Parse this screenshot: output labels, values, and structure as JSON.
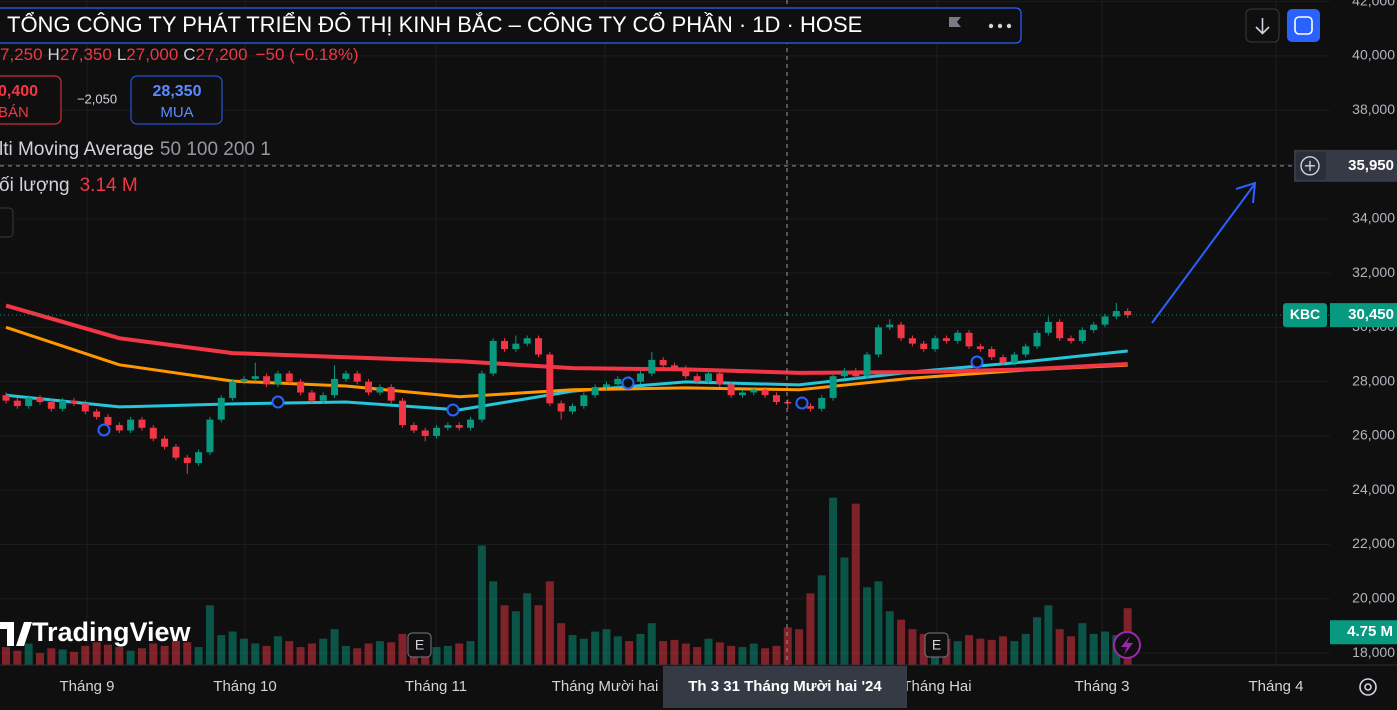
{
  "header": {
    "title": "TỔNG CÔNG TY PHÁT TRIỂN ĐÔ THỊ KINH BẮC – CÔNG TY CỔ PHẦN · 1D · HOSE",
    "ohlc": {
      "open": "7,250",
      "high_key": "H",
      "high": "27,350",
      "low_key": "L",
      "low": "27,000",
      "close_key": "C",
      "close": "27,200",
      "change": "−50 (−0.18%)"
    }
  },
  "order": {
    "sell_price": "0,400",
    "sell_label": "BÁN",
    "spread": "−2,050",
    "buy_price": "28,350",
    "buy_label": "MUA"
  },
  "indicators": {
    "ma_name": "lti Moving Average",
    "ma_params": "50 100 200 1",
    "volume_name": "ối lượng",
    "volume_value": "3.14 M"
  },
  "logo": "TradingView",
  "chart_data": {
    "type": "candlestick",
    "symbol": "KBC",
    "up_color": "#089981",
    "down_color": "#f23645",
    "ylim": [
      17560,
      42060
    ],
    "yticks": [
      {
        "value": 18000,
        "label": "18,000"
      },
      {
        "value": 20000,
        "label": "20,000"
      },
      {
        "value": 22000,
        "label": "22,000"
      },
      {
        "value": 24000,
        "label": "24,000"
      },
      {
        "value": 26000,
        "label": "26,000"
      },
      {
        "value": 28000,
        "label": "28,000"
      },
      {
        "value": 30000,
        "label": "30,000"
      },
      {
        "value": 32000,
        "label": "32,000"
      },
      {
        "value": 34000,
        "label": "34,000"
      },
      {
        "value": 36000,
        "label": "36,000"
      },
      {
        "value": 38000,
        "label": "38,000"
      },
      {
        "value": 40000,
        "label": "40,000"
      },
      {
        "value": 42000,
        "label": "42,000"
      }
    ],
    "grid": true,
    "x_labels": [
      "Tháng 9",
      "Tháng 10",
      "Tháng 11",
      "Tháng Mười hai",
      "Tháng Hai",
      "Tháng 3",
      "Tháng 4"
    ],
    "open": [
      27500,
      27300,
      27100,
      27400,
      27250,
      27000,
      27300,
      27200,
      26900,
      26700,
      26400,
      26200,
      26600,
      26300,
      25900,
      25600,
      25200,
      25000,
      25400,
      26600,
      27400,
      28000,
      28100,
      28200,
      27900,
      28300,
      28000,
      27600,
      27300,
      27500,
      28100,
      28300,
      28000,
      27600,
      27800,
      27300,
      26400,
      26200,
      26000,
      26300,
      26400,
      26300,
      26600,
      28300,
      29500,
      29200,
      29400,
      29600,
      29000,
      27200,
      26900,
      27100,
      27500,
      27800,
      27900,
      28100,
      28000,
      28300,
      28800,
      28600,
      28500,
      28200,
      28000,
      28300,
      27900,
      27500,
      27600,
      27700,
      27500,
      27250,
      27200,
      27100,
      27000,
      27400,
      28200,
      28400,
      28200,
      29000,
      30000,
      30100,
      29600,
      29400,
      29200,
      29600,
      29500,
      29800,
      29300,
      29200,
      28900,
      28700,
      29000,
      29300,
      29800,
      30200,
      29600,
      29500,
      29900,
      30100,
      30400,
      30600
    ],
    "high": [
      27600,
      27400,
      27500,
      27500,
      27350,
      27400,
      27400,
      27300,
      27000,
      26800,
      26500,
      26700,
      26700,
      26400,
      26000,
      25700,
      25300,
      25500,
      26700,
      27500,
      28100,
      28200,
      28700,
      28300,
      28400,
      28400,
      28100,
      27700,
      27600,
      28600,
      28400,
      28400,
      28100,
      27900,
      27900,
      27400,
      26500,
      26300,
      26400,
      26500,
      26500,
      26700,
      28400,
      29600,
      29600,
      29700,
      29700,
      29700,
      29100,
      27300,
      27200,
      27600,
      27900,
      28000,
      28200,
      28200,
      28400,
      29100,
      28900,
      28700,
      28600,
      28300,
      28400,
      28400,
      28000,
      27700,
      27800,
      27800,
      27600,
      27350,
      27300,
      27200,
      27500,
      28300,
      28500,
      28500,
      29100,
      30100,
      30300,
      30200,
      29700,
      29500,
      29700,
      29700,
      29900,
      29900,
      29400,
      29300,
      29000,
      29100,
      29400,
      29900,
      30400,
      30300,
      29700,
      30000,
      30200,
      30500,
      30900,
      30700
    ],
    "low": [
      27200,
      27000,
      27000,
      27150,
      26900,
      26900,
      27100,
      26800,
      26600,
      26300,
      26100,
      26100,
      26200,
      25800,
      25500,
      25100,
      24600,
      24900,
      25300,
      26500,
      27300,
      27900,
      28000,
      27800,
      27800,
      27900,
      27500,
      27200,
      27200,
      27400,
      28000,
      27900,
      27500,
      27500,
      27200,
      26300,
      26100,
      25800,
      25900,
      26200,
      26200,
      26200,
      26500,
      28200,
      29100,
      29100,
      29300,
      28900,
      27100,
      26600,
      26800,
      27000,
      27400,
      27700,
      27800,
      27900,
      27900,
      28200,
      28500,
      28400,
      28100,
      27900,
      27900,
      27800,
      27400,
      27400,
      27500,
      27400,
      27150,
      27000,
      27000,
      26900,
      26900,
      27300,
      28100,
      28100,
      28100,
      28900,
      29900,
      29500,
      29300,
      29100,
      29100,
      29400,
      29400,
      29200,
      29100,
      28800,
      28600,
      28600,
      28900,
      29200,
      29700,
      29500,
      29400,
      29400,
      29800,
      30000,
      30300,
      30350
    ],
    "close": [
      27300,
      27100,
      27400,
      27250,
      27000,
      27300,
      27200,
      26900,
      26700,
      26400,
      26200,
      26600,
      26300,
      25900,
      25600,
      25200,
      25000,
      25400,
      26600,
      27400,
      28000,
      28100,
      28200,
      27900,
      28300,
      28000,
      27600,
      27300,
      27500,
      28100,
      28300,
      28000,
      27600,
      27800,
      27300,
      26400,
      26200,
      26000,
      26300,
      26400,
      26300,
      26600,
      28300,
      29500,
      29200,
      29400,
      29600,
      29000,
      27200,
      26900,
      27100,
      27500,
      27800,
      27900,
      28100,
      28000,
      28300,
      28800,
      28600,
      28500,
      28200,
      28000,
      28300,
      27900,
      27500,
      27600,
      27700,
      27500,
      27250,
      27200,
      27100,
      27000,
      27400,
      28200,
      28400,
      28200,
      29000,
      30000,
      30100,
      29600,
      29400,
      29200,
      29600,
      29500,
      29800,
      29300,
      29200,
      28900,
      28700,
      29000,
      29300,
      29800,
      30200,
      29600,
      29500,
      29900,
      30100,
      30400,
      30600,
      30450
    ],
    "volume": [
      1.5,
      1.2,
      1.8,
      1.0,
      1.4,
      1.3,
      1.1,
      1.6,
      1.9,
      1.7,
      1.5,
      1.2,
      1.4,
      1.8,
      1.6,
      2.0,
      1.9,
      1.5,
      5.0,
      2.5,
      2.8,
      2.2,
      1.8,
      1.6,
      2.4,
      2.0,
      1.5,
      1.8,
      2.2,
      3.0,
      1.6,
      1.4,
      1.8,
      2.0,
      1.9,
      2.6,
      2.4,
      1.8,
      1.5,
      1.6,
      1.8,
      2.0,
      10.0,
      7.0,
      5.0,
      4.5,
      6.0,
      5.0,
      7.0,
      3.5,
      2.5,
      2.2,
      2.8,
      3.0,
      2.4,
      2.0,
      2.6,
      3.5,
      2.0,
      2.1,
      1.8,
      1.5,
      2.2,
      1.9,
      1.6,
      1.5,
      1.8,
      1.4,
      1.6,
      3.14,
      3.0,
      6.0,
      7.5,
      14.0,
      9.0,
      13.5,
      6.5,
      7.0,
      4.5,
      3.8,
      3.0,
      2.6,
      2.4,
      2.2,
      2.0,
      2.5,
      2.2,
      2.1,
      2.4,
      2.0,
      2.6,
      4.0,
      5.0,
      3.0,
      2.4,
      3.5,
      2.6,
      2.8,
      2.5,
      4.75
    ],
    "volume_ylim": [
      0,
      20
    ],
    "moving_averages": {
      "x": [
        0,
        10,
        20,
        30,
        40,
        50,
        60,
        70,
        80,
        90,
        99
      ],
      "series": [
        {
          "color": "#26c6da",
          "values": [
            27500,
            27070,
            27180,
            27250,
            26960,
            27650,
            27990,
            27880,
            28360,
            28730,
            29130
          ]
        },
        {
          "color": "#ff9800",
          "values": [
            30000,
            28620,
            28020,
            27840,
            27440,
            27700,
            27770,
            27700,
            28130,
            28430,
            28610
          ]
        },
        {
          "color": "#f23645",
          "values": [
            30800,
            29600,
            29050,
            28900,
            28750,
            28500,
            28450,
            28320,
            28350,
            28450,
            28650
          ]
        }
      ]
    },
    "last_price": {
      "value": 30450,
      "label": "30,450"
    },
    "crosshair": {
      "price": {
        "value": 35950,
        "label": "35,950"
      },
      "date_label": "Th 3 31 Tháng Mười hai '24"
    },
    "volume_label": {
      "value": 4.75,
      "label": "4.75 M"
    },
    "earnings_marker": "E"
  }
}
